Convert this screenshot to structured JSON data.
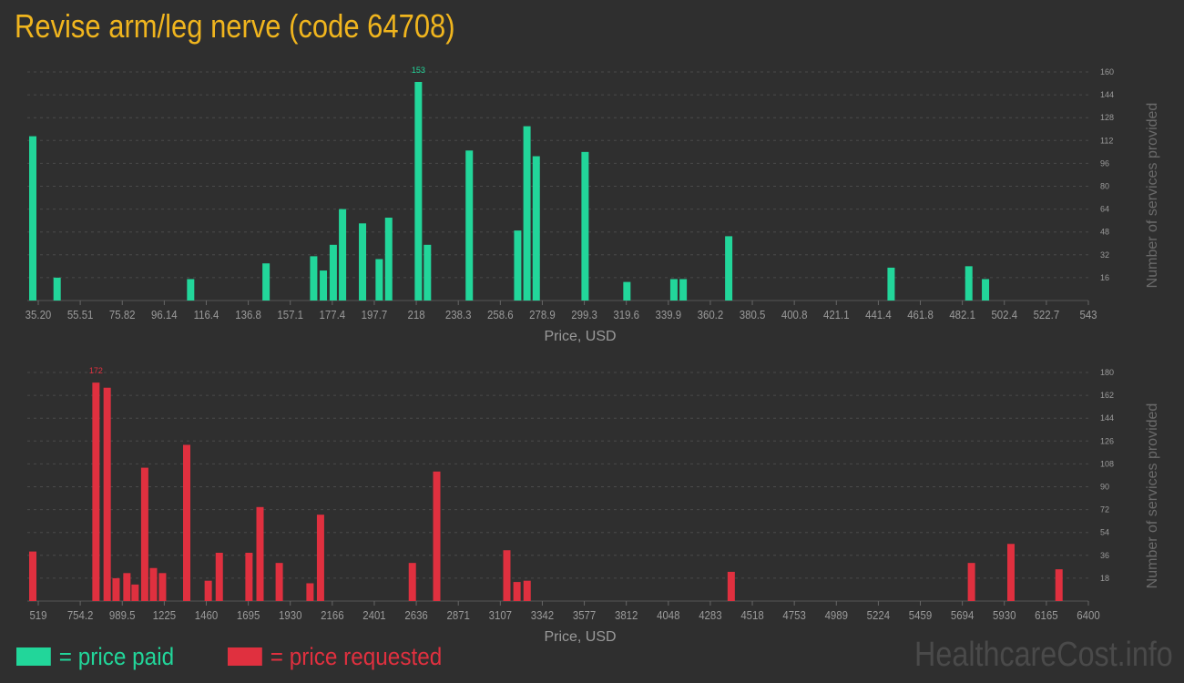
{
  "title": "Revise arm/leg nerve (code 64708)",
  "legend": {
    "paid": "= price paid",
    "requested": "= price requested"
  },
  "watermark": "HealthcareCost.info",
  "colors": {
    "background": "#2f2f2f",
    "paid": "#22d69a",
    "requested": "#e0303f",
    "title": "#f0b51e",
    "axis_text": "#9a9a9a",
    "grid": "#4a4a4a"
  },
  "chart_data": [
    {
      "type": "bar",
      "xlabel": "Price, USD",
      "ylabel": "Number of services provided",
      "ylim": [
        0,
        160
      ],
      "y_ticks": [
        "16",
        "32",
        "48",
        "64",
        "80",
        "96",
        "112",
        "128",
        "144",
        "160"
      ],
      "x_ticks": [
        "35.20",
        "55.51",
        "75.82",
        "96.14",
        "116.4",
        "136.8",
        "157.1",
        "177.4",
        "197.7",
        "218",
        "238.3",
        "258.6",
        "278.9",
        "299.3",
        "319.6",
        "339.9",
        "360.2",
        "380.5",
        "400.8",
        "421.1",
        "441.4",
        "461.8",
        "482.1",
        "502.4",
        "522.7",
        "543"
      ],
      "x_range": [
        35.2,
        543
      ],
      "peak_label": "153",
      "color": "#22d69a",
      "bars": [
        {
          "x": 35.2,
          "y": 115
        },
        {
          "x": 47.0,
          "y": 16
        },
        {
          "x": 111.8,
          "y": 15
        },
        {
          "x": 148.4,
          "y": 26
        },
        {
          "x": 171.5,
          "y": 31
        },
        {
          "x": 176.2,
          "y": 21
        },
        {
          "x": 181.0,
          "y": 39
        },
        {
          "x": 185.5,
          "y": 64
        },
        {
          "x": 195.2,
          "y": 54
        },
        {
          "x": 203.3,
          "y": 29
        },
        {
          "x": 207.9,
          "y": 58
        },
        {
          "x": 222.3,
          "y": 153
        },
        {
          "x": 226.7,
          "y": 39
        },
        {
          "x": 247.0,
          "y": 105
        },
        {
          "x": 270.5,
          "y": 49
        },
        {
          "x": 275.0,
          "y": 122
        },
        {
          "x": 279.5,
          "y": 101
        },
        {
          "x": 303.2,
          "y": 104
        },
        {
          "x": 323.5,
          "y": 13
        },
        {
          "x": 346.3,
          "y": 15
        },
        {
          "x": 350.8,
          "y": 15
        },
        {
          "x": 372.9,
          "y": 45
        },
        {
          "x": 451.7,
          "y": 23
        },
        {
          "x": 489.4,
          "y": 24
        },
        {
          "x": 497.5,
          "y": 15
        }
      ]
    },
    {
      "type": "bar",
      "xlabel": "Price, USD",
      "ylabel": "Number of services provided",
      "ylim": [
        0,
        180
      ],
      "y_ticks": [
        "18",
        "36",
        "54",
        "72",
        "90",
        "108",
        "126",
        "144",
        "162",
        "180"
      ],
      "x_ticks": [
        "519",
        "754.2",
        "989.5",
        "1225",
        "1460",
        "1695",
        "1930",
        "2166",
        "2401",
        "2636",
        "2871",
        "3107",
        "3342",
        "3577",
        "3812",
        "4048",
        "4283",
        "4518",
        "4753",
        "4989",
        "5224",
        "5459",
        "5694",
        "5930",
        "6165",
        "6400"
      ],
      "x_range": [
        519,
        6400
      ],
      "peak_label": "172",
      "color": "#e0303f",
      "bars": [
        {
          "x": 519,
          "y": 39
        },
        {
          "x": 874,
          "y": 172
        },
        {
          "x": 937,
          "y": 168
        },
        {
          "x": 987,
          "y": 18
        },
        {
          "x": 1048,
          "y": 22
        },
        {
          "x": 1094,
          "y": 13
        },
        {
          "x": 1148,
          "y": 105
        },
        {
          "x": 1197,
          "y": 26
        },
        {
          "x": 1248,
          "y": 22
        },
        {
          "x": 1384,
          "y": 123
        },
        {
          "x": 1505,
          "y": 16
        },
        {
          "x": 1567,
          "y": 38
        },
        {
          "x": 1734,
          "y": 38
        },
        {
          "x": 1796,
          "y": 74
        },
        {
          "x": 1904,
          "y": 30
        },
        {
          "x": 2077,
          "y": 14
        },
        {
          "x": 2136,
          "y": 68
        },
        {
          "x": 2652,
          "y": 30
        },
        {
          "x": 2789,
          "y": 102
        },
        {
          "x": 3183,
          "y": 40
        },
        {
          "x": 3240,
          "y": 15
        },
        {
          "x": 3297,
          "y": 16
        },
        {
          "x": 4444,
          "y": 23
        },
        {
          "x": 5794,
          "y": 30
        },
        {
          "x": 6016,
          "y": 45
        },
        {
          "x": 6286,
          "y": 25
        }
      ]
    }
  ]
}
